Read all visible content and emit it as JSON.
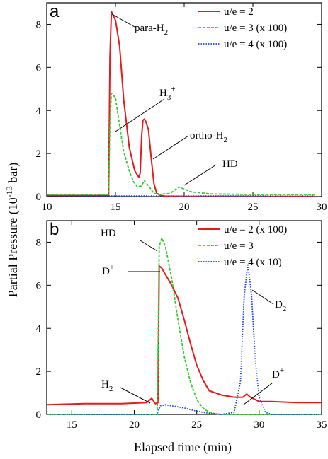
{
  "figure": {
    "ylabel": "Partial Pressure (10",
    "ylabel_exp": "-13",
    "ylabel_unit": " bar)",
    "xlabel": "Elapsed time (min)"
  },
  "colors": {
    "u2": "#e41a1c",
    "u3": "#32cd32",
    "u4": "#1f45d8"
  },
  "chart_data": [
    {
      "type": "line",
      "panel": "a",
      "xlim": [
        10,
        30
      ],
      "ylim": [
        0,
        9
      ],
      "xticks": [
        10,
        15,
        20,
        25,
        30
      ],
      "yticks": [
        0,
        2,
        4,
        6,
        8
      ],
      "legend": [
        "u/e = 2",
        "u/e = 3 (x 100)",
        "u/e = 4 (x 100)"
      ],
      "legend_position": "top-right",
      "annotations": [
        {
          "text": "para-H",
          "sub": "2",
          "sup": ""
        },
        {
          "text": "H",
          "sub": "3",
          "sup": "+"
        },
        {
          "text": "ortho-H",
          "sub": "2",
          "sup": ""
        },
        {
          "text": "HD",
          "sub": "",
          "sup": ""
        }
      ],
      "series": [
        {
          "name": "u/e = 2",
          "style": "solid",
          "x": [
            10,
            14.5,
            14.6,
            14.7,
            15.0,
            15.3,
            15.6,
            16.0,
            16.4,
            16.7,
            16.8,
            16.9,
            17.0,
            17.1,
            17.2,
            17.4,
            17.6,
            17.8,
            18.0,
            18.3,
            18.6,
            20,
            25,
            29.5
          ],
          "y": [
            0.05,
            0.05,
            6.5,
            8.6,
            8.2,
            7.0,
            4.5,
            2.3,
            1.2,
            0.9,
            1.1,
            2.8,
            3.55,
            3.6,
            3.5,
            3.1,
            1.8,
            0.6,
            0.15,
            0.05,
            0.02,
            0.01,
            0.01,
            0.01
          ]
        },
        {
          "name": "u/e = 3 (x 100)",
          "style": "dashed",
          "x": [
            10,
            12,
            14.5,
            14.6,
            14.7,
            15.0,
            15.3,
            15.6,
            16.0,
            16.3,
            16.6,
            16.9,
            17.1,
            17.4,
            17.8,
            18.2,
            19.0,
            19.6,
            20.0,
            20.5,
            22,
            25,
            29.5
          ],
          "y": [
            0.1,
            0.1,
            0.1,
            3.5,
            4.8,
            4.6,
            3.3,
            2.1,
            1.2,
            0.7,
            0.45,
            0.5,
            0.75,
            0.5,
            0.15,
            0.1,
            0.15,
            0.45,
            0.35,
            0.22,
            0.12,
            0.1,
            0.1
          ]
        },
        {
          "name": "u/e = 4 (x 100)",
          "style": "dotted",
          "x": [
            10,
            14.5,
            15,
            20,
            25,
            29.5
          ],
          "y": [
            0.03,
            0.03,
            0.03,
            0.03,
            0.03,
            0.03
          ]
        }
      ]
    },
    {
      "type": "line",
      "panel": "b",
      "xlim": [
        13,
        35
      ],
      "ylim": [
        0,
        9
      ],
      "xticks": [
        15,
        20,
        25,
        30,
        35
      ],
      "yticks": [
        0,
        2,
        4,
        6,
        8
      ],
      "legend": [
        "u/e = 2 (x 100)",
        "u/e = 3",
        "u/e = 4 (x 10)"
      ],
      "legend_position": "top-right",
      "annotations": [
        {
          "text": "HD",
          "sub": "",
          "sup": ""
        },
        {
          "text": "D",
          "sub": "",
          "sup": "+"
        },
        {
          "text": "D",
          "sub": "2",
          "sup": ""
        },
        {
          "text": "H",
          "sub": "2",
          "sup": ""
        },
        {
          "text": "D",
          "sub": "",
          "sup": "+"
        }
      ],
      "series": [
        {
          "name": "u/e = 2 (x 100)",
          "style": "solid",
          "x": [
            13,
            16,
            19,
            21,
            21.4,
            21.7,
            21.9,
            22.0,
            22.2,
            22.5,
            23.0,
            23.5,
            24.0,
            24.5,
            25.0,
            25.5,
            26.0,
            27.0,
            28.0,
            28.7,
            29.0,
            29.3,
            30.0,
            31.0,
            33.0,
            35.0
          ],
          "y": [
            0.45,
            0.5,
            0.5,
            0.55,
            0.75,
            0.5,
            0.55,
            6.9,
            6.8,
            6.5,
            6.0,
            5.4,
            4.4,
            3.3,
            2.3,
            1.6,
            1.1,
            0.9,
            0.8,
            0.8,
            0.95,
            0.8,
            0.6,
            0.6,
            0.55,
            0.55
          ]
        },
        {
          "name": "u/e = 3",
          "style": "dashed",
          "x": [
            13,
            21.7,
            21.85,
            22.0,
            22.2,
            22.5,
            23.0,
            23.5,
            24.0,
            24.5,
            25.0,
            25.5,
            26.0,
            26.5,
            27.0,
            35.0
          ],
          "y": [
            0,
            0,
            0,
            7.8,
            8.2,
            7.8,
            6.3,
            4.4,
            2.7,
            1.5,
            0.7,
            0.3,
            0.1,
            0.03,
            0,
            0
          ]
        },
        {
          "name": "u/e = 4 (x 10)",
          "style": "dotted",
          "x": [
            13,
            21.8,
            22.1,
            22.5,
            23.0,
            24.0,
            25.0,
            26.0,
            27.0,
            28.0,
            28.5,
            28.8,
            29.1,
            29.4,
            29.7,
            30.0,
            30.5,
            31.0,
            35.0
          ],
          "y": [
            0,
            0,
            0.4,
            0.45,
            0.4,
            0.3,
            0.15,
            0.05,
            0,
            0.1,
            1.5,
            5.5,
            7.0,
            5.5,
            2.5,
            0.8,
            0.1,
            0,
            0
          ]
        }
      ]
    }
  ]
}
